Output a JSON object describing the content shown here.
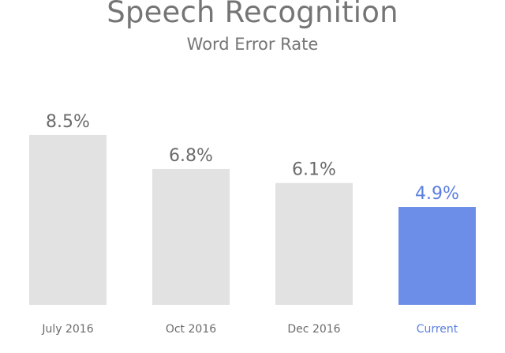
{
  "header": {
    "title": "Speech Recognition",
    "subtitle": "Word Error Rate"
  },
  "colors": {
    "bar_default": "#e2e2e2",
    "bar_highlight": "#6c8ee8",
    "label_default": "#6b6b6b",
    "label_highlight": "#5a7fe0"
  },
  "chart_data": {
    "type": "bar",
    "title": "Speech Recognition",
    "subtitle": "Word Error Rate",
    "categories": [
      "July 2016",
      "Oct 2016",
      "Dec 2016",
      "Current"
    ],
    "values": [
      8.5,
      6.8,
      6.1,
      4.9
    ],
    "value_labels": [
      "8.5%",
      "6.8%",
      "6.1%",
      "4.9%"
    ],
    "highlighted_category": "Current",
    "xlabel": "",
    "ylabel": "",
    "ylim": [
      0,
      10
    ],
    "grid": false,
    "legend": "none"
  }
}
